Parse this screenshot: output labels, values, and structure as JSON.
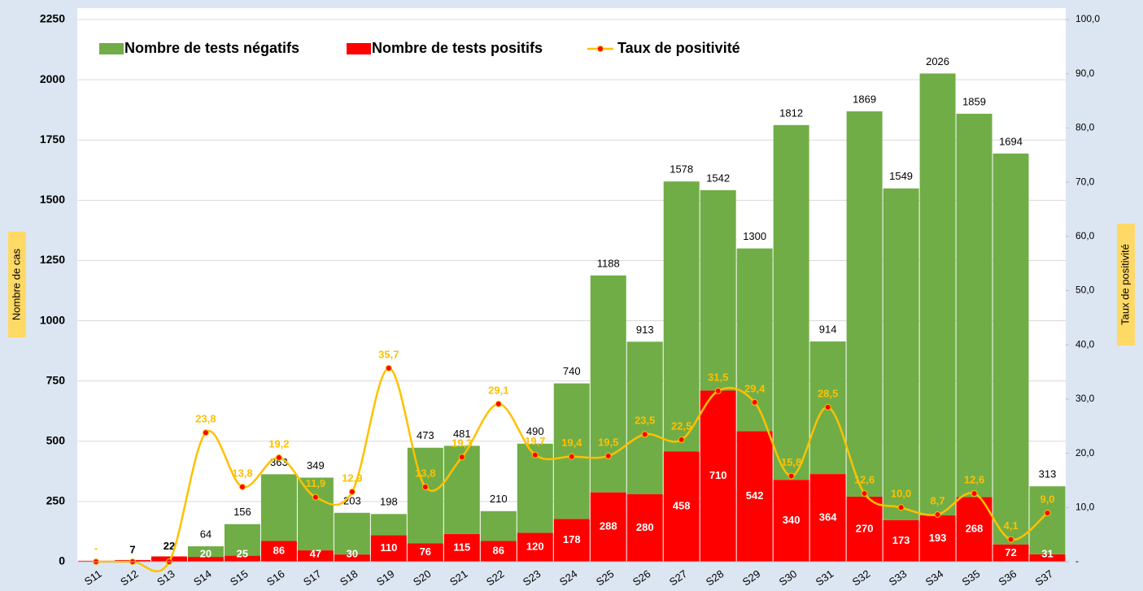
{
  "chart_data": {
    "type": "bar-line",
    "categories": [
      "S11",
      "S12",
      "S13",
      "S14",
      "S15",
      "S16",
      "S17",
      "S18",
      "S19",
      "S20",
      "S21",
      "S22",
      "S23",
      "S24",
      "S25",
      "S26",
      "S27",
      "S28",
      "S29",
      "S30",
      "S31",
      "S32",
      "S33",
      "S34",
      "S35",
      "S36",
      "S37"
    ],
    "series": [
      {
        "name": "Nombre de tests négatifs",
        "color": "#70ad47",
        "type": "bar",
        "values": [
          0,
          0,
          0,
          44,
          131,
          277,
          302,
          173,
          88,
          397,
          366,
          124,
          370,
          562,
          900,
          633,
          1120,
          832,
          758,
          1472,
          550,
          1599,
          1376,
          1833,
          1591,
          1622,
          282
        ]
      },
      {
        "name": "Nombre de tests positifs",
        "color": "#ff0000",
        "type": "bar",
        "values": [
          4,
          7,
          22,
          20,
          25,
          86,
          47,
          30,
          110,
          76,
          115,
          86,
          120,
          178,
          288,
          280,
          458,
          710,
          542,
          340,
          364,
          270,
          173,
          193,
          268,
          72,
          31
        ],
        "value_labels": [
          null,
          "7",
          "22",
          "20",
          "25",
          "86",
          "47",
          "30",
          "110",
          "76",
          "115",
          "86",
          "120",
          "178",
          "288",
          "280",
          "458",
          "710",
          "542",
          "340",
          "364",
          "270",
          "173",
          "193",
          "268",
          "72",
          "31"
        ]
      },
      {
        "name": "Taux de positivité",
        "color": "#ffc000",
        "marker_color": "#ff0000",
        "type": "line",
        "axis": "y2",
        "values": [
          0,
          0,
          0,
          23.8,
          13.8,
          19.2,
          11.9,
          12.9,
          35.7,
          13.8,
          19.3,
          29.1,
          19.7,
          19.4,
          19.5,
          23.5,
          22.5,
          31.5,
          29.4,
          15.8,
          28.5,
          12.6,
          10.0,
          8.7,
          12.6,
          4.1,
          9.0
        ],
        "value_labels": [
          "-",
          null,
          null,
          "23,8",
          "13,8",
          "19,2",
          "11,9",
          "12,9",
          "35,7",
          "13,8",
          "19,3",
          "29,1",
          "19,7",
          "19,4",
          "19,5",
          "23,5",
          "22,5",
          "31,5",
          "29,4",
          "15,8",
          "28,5",
          "12,6",
          "10,0",
          "8,7",
          "12,6",
          "4,1",
          "9,0"
        ]
      }
    ],
    "totals": [
      null,
      null,
      null,
      64,
      156,
      363,
      349,
      203,
      198,
      473,
      481,
      210,
      490,
      740,
      1188,
      913,
      1578,
      1542,
      1300,
      1812,
      914,
      1869,
      1549,
      2026,
      1859,
      1694,
      313
    ],
    "y_label": "Nombre de cas",
    "y2_label": "Taux de positivité",
    "ylim": [
      0,
      2250
    ],
    "yticks": [
      0,
      250,
      500,
      750,
      1000,
      1250,
      1500,
      1750,
      2000,
      2250
    ],
    "y2lim": [
      0,
      100
    ],
    "y2ticks": [
      {
        "value": 0,
        "label": "-"
      },
      {
        "value": 10,
        "label": "10,0"
      },
      {
        "value": 20,
        "label": "20,0"
      },
      {
        "value": 30,
        "label": "30,0"
      },
      {
        "value": 40,
        "label": "40,0"
      },
      {
        "value": 50,
        "label": "50,0"
      },
      {
        "value": 60,
        "label": "60,0"
      },
      {
        "value": 70,
        "label": "70,0"
      },
      {
        "value": 80,
        "label": "80,0"
      },
      {
        "value": 90,
        "label": "90,0"
      },
      {
        "value": 100,
        "label": "100,0"
      }
    ],
    "grid": true,
    "legend": "top"
  }
}
